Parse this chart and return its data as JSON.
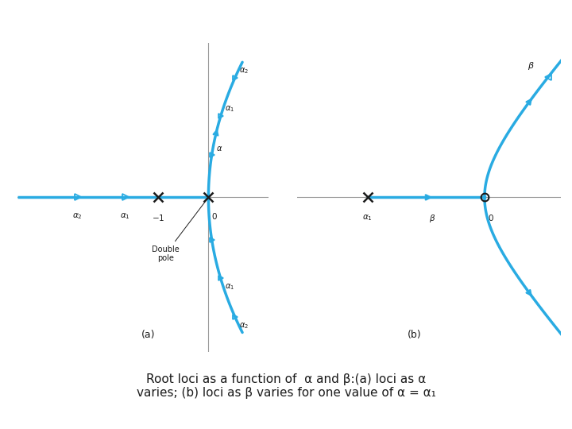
{
  "cyan_color": "#29ABE2",
  "gray_color": "#999999",
  "black_color": "#1a1a1a",
  "white_color": "#ffffff",
  "caption_line1": "Root loci as a function of  α and β:(a) loci as α",
  "caption_line2": "varies; (b) loci as β varies for one value of α = α₁"
}
